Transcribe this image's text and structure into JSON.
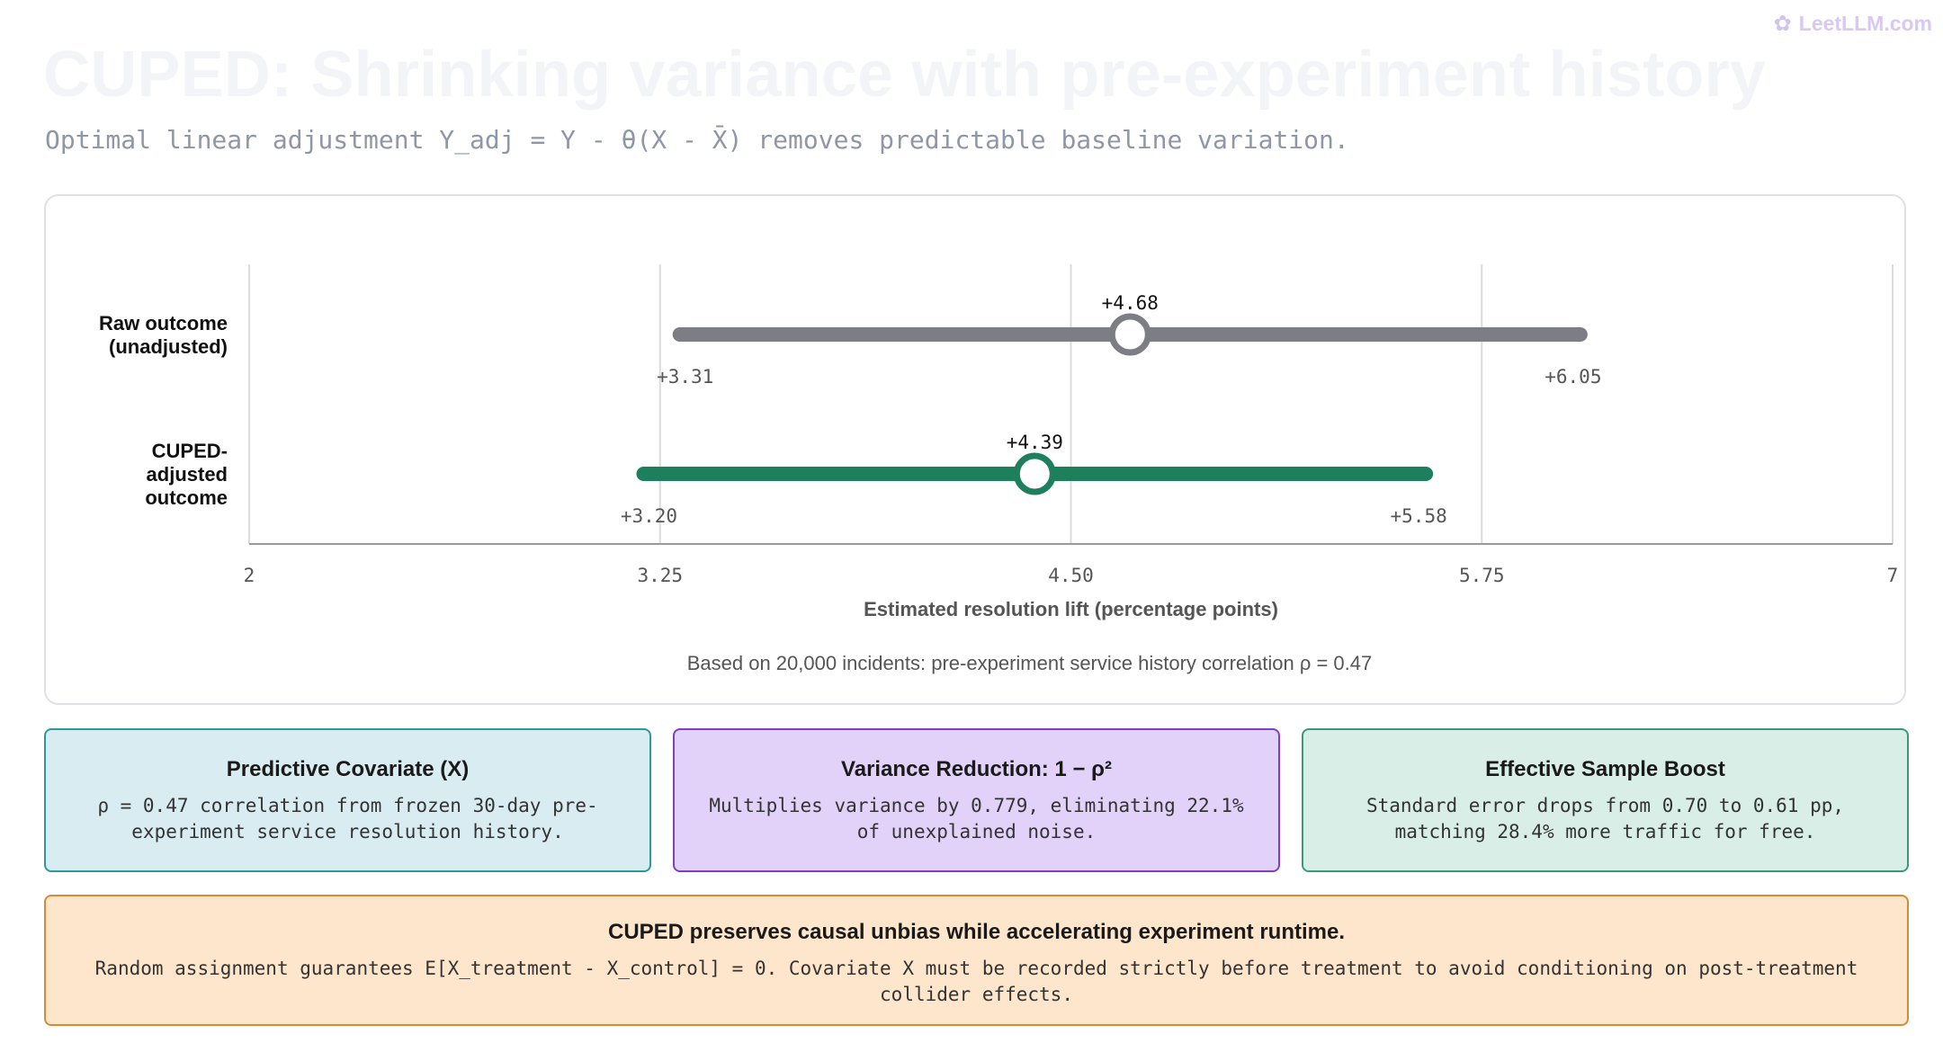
{
  "brand": {
    "icon": "brain-icon",
    "text": "LeetLLM.com"
  },
  "title": "CUPED: Shrinking variance with pre-experiment history",
  "subtitle": "Optimal linear adjustment Y_adj = Y - θ(X - X̄) removes predictable baseline variation.",
  "chart_data": {
    "type": "interval",
    "xlabel": "Estimated resolution lift (percentage points)",
    "xlim": [
      2,
      7
    ],
    "xticks": [
      "2",
      "3.25",
      "4.50",
      "5.75",
      "7"
    ],
    "tick_values": [
      2,
      3.25,
      4.5,
      5.75,
      7
    ],
    "series": [
      {
        "name": "Raw outcome (unadjusted)",
        "label_lines": [
          "Raw outcome",
          "(unadjusted)"
        ],
        "low": 3.31,
        "high": 6.05,
        "estimate": 4.68,
        "low_label": "+3.31",
        "high_label": "+6.05",
        "estimate_label": "+4.68",
        "color": "#7d7d84"
      },
      {
        "name": "CUPED-adjusted outcome",
        "label_lines": [
          "CUPED-",
          "adjusted",
          "outcome"
        ],
        "low": 3.2,
        "high": 5.58,
        "estimate": 4.39,
        "low_label": "+3.20",
        "high_label": "+5.58",
        "estimate_label": "+4.39",
        "color": "#1e7f5c"
      }
    ],
    "footnote": "Based on 20,000 incidents: pre-experiment service history correlation ρ = 0.47"
  },
  "cards": [
    {
      "title": "Predictive Covariate (X)",
      "body": "ρ = 0.47 correlation from frozen 30-day pre-experiment service resolution history."
    },
    {
      "title": "Variance Reduction: 1 − ρ²",
      "body": "Multiplies variance by 0.779, eliminating 22.1% of unexplained noise."
    },
    {
      "title": "Effective Sample Boost",
      "body": "Standard error drops from 0.70 to 0.61 pp, matching 28.4% more traffic for free."
    }
  ],
  "banner": {
    "title": "CUPED preserves causal unbias while accelerating experiment runtime.",
    "body": "Random assignment guarantees E[X_treatment - X_control] = 0. Covariate X must be recorded strictly before treatment to avoid conditioning on post-treatment collider effects."
  }
}
